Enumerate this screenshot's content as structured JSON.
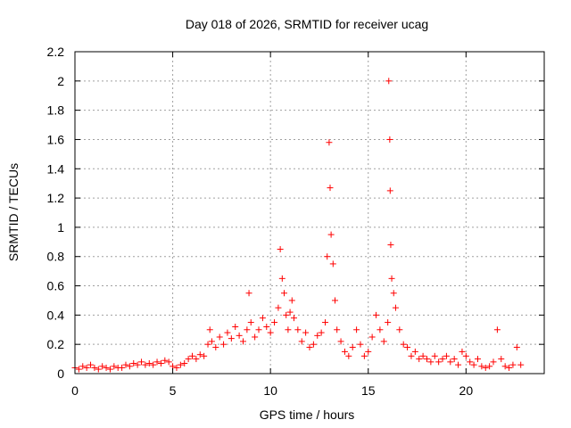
{
  "chart_data": {
    "type": "scatter",
    "title": "Day 018 of 2026, SRMTID for receiver ucag",
    "xlabel": "GPS time / hours",
    "ylabel": "SRMTID / TECUs",
    "xlim": [
      0,
      24
    ],
    "ylim": [
      0,
      2.2
    ],
    "xticks": [
      0,
      5,
      10,
      15,
      20
    ],
    "xtick_labels": [
      "0",
      "5",
      "10",
      "15",
      "20"
    ],
    "yticks": [
      0,
      0.2,
      0.4,
      0.6,
      0.8,
      1,
      1.2,
      1.4,
      1.6,
      1.8,
      2,
      2.2
    ],
    "ytick_labels": [
      "0",
      "0.2",
      "0.4",
      "0.6",
      "0.8",
      "1",
      "1.2",
      "1.4",
      "1.6",
      "1.8",
      "2",
      "2.2"
    ],
    "grid": true,
    "marker": "+",
    "marker_color": "#ff0000",
    "series": [
      {
        "name": "SRMTID",
        "points": [
          [
            0.0,
            0.04
          ],
          [
            0.2,
            0.03
          ],
          [
            0.4,
            0.05
          ],
          [
            0.6,
            0.04
          ],
          [
            0.8,
            0.06
          ],
          [
            1.0,
            0.04
          ],
          [
            1.2,
            0.03
          ],
          [
            1.4,
            0.05
          ],
          [
            1.6,
            0.04
          ],
          [
            1.8,
            0.03
          ],
          [
            2.0,
            0.05
          ],
          [
            2.2,
            0.04
          ],
          [
            2.4,
            0.04
          ],
          [
            2.6,
            0.06
          ],
          [
            2.8,
            0.05
          ],
          [
            3.0,
            0.07
          ],
          [
            3.2,
            0.06
          ],
          [
            3.4,
            0.08
          ],
          [
            3.6,
            0.06
          ],
          [
            3.8,
            0.07
          ],
          [
            4.0,
            0.06
          ],
          [
            4.2,
            0.08
          ],
          [
            4.4,
            0.07
          ],
          [
            4.6,
            0.09
          ],
          [
            4.8,
            0.08
          ],
          [
            5.0,
            0.05
          ],
          [
            5.2,
            0.04
          ],
          [
            5.4,
            0.06
          ],
          [
            5.6,
            0.07
          ],
          [
            5.8,
            0.1
          ],
          [
            6.0,
            0.12
          ],
          [
            6.2,
            0.1
          ],
          [
            6.4,
            0.13
          ],
          [
            6.6,
            0.12
          ],
          [
            6.8,
            0.2
          ],
          [
            6.9,
            0.3
          ],
          [
            7.0,
            0.22
          ],
          [
            7.2,
            0.18
          ],
          [
            7.4,
            0.25
          ],
          [
            7.6,
            0.2
          ],
          [
            7.8,
            0.28
          ],
          [
            8.0,
            0.24
          ],
          [
            8.2,
            0.32
          ],
          [
            8.4,
            0.26
          ],
          [
            8.6,
            0.22
          ],
          [
            8.8,
            0.3
          ],
          [
            8.9,
            0.55
          ],
          [
            9.0,
            0.35
          ],
          [
            9.2,
            0.25
          ],
          [
            9.4,
            0.3
          ],
          [
            9.6,
            0.38
          ],
          [
            9.8,
            0.32
          ],
          [
            10.0,
            0.28
          ],
          [
            10.2,
            0.35
          ],
          [
            10.4,
            0.45
          ],
          [
            10.5,
            0.85
          ],
          [
            10.6,
            0.65
          ],
          [
            10.7,
            0.55
          ],
          [
            10.8,
            0.4
          ],
          [
            10.9,
            0.3
          ],
          [
            11.0,
            0.42
          ],
          [
            11.1,
            0.5
          ],
          [
            11.2,
            0.38
          ],
          [
            11.4,
            0.3
          ],
          [
            11.6,
            0.22
          ],
          [
            11.8,
            0.28
          ],
          [
            12.0,
            0.18
          ],
          [
            12.2,
            0.2
          ],
          [
            12.4,
            0.26
          ],
          [
            12.6,
            0.28
          ],
          [
            12.8,
            0.35
          ],
          [
            12.9,
            0.8
          ],
          [
            13.0,
            1.58
          ],
          [
            13.05,
            1.27
          ],
          [
            13.1,
            0.95
          ],
          [
            13.2,
            0.75
          ],
          [
            13.3,
            0.5
          ],
          [
            13.4,
            0.3
          ],
          [
            13.6,
            0.22
          ],
          [
            13.8,
            0.15
          ],
          [
            14.0,
            0.12
          ],
          [
            14.2,
            0.18
          ],
          [
            14.4,
            0.3
          ],
          [
            14.6,
            0.2
          ],
          [
            14.8,
            0.12
          ],
          [
            15.0,
            0.15
          ],
          [
            15.2,
            0.25
          ],
          [
            15.4,
            0.4
          ],
          [
            15.6,
            0.3
          ],
          [
            15.8,
            0.22
          ],
          [
            16.0,
            0.35
          ],
          [
            16.05,
            2.0
          ],
          [
            16.1,
            1.6
          ],
          [
            16.12,
            1.25
          ],
          [
            16.15,
            0.88
          ],
          [
            16.2,
            0.65
          ],
          [
            16.3,
            0.55
          ],
          [
            16.4,
            0.45
          ],
          [
            16.6,
            0.3
          ],
          [
            16.8,
            0.2
          ],
          [
            17.0,
            0.18
          ],
          [
            17.2,
            0.12
          ],
          [
            17.4,
            0.15
          ],
          [
            17.6,
            0.1
          ],
          [
            17.8,
            0.12
          ],
          [
            18.0,
            0.1
          ],
          [
            18.2,
            0.08
          ],
          [
            18.4,
            0.12
          ],
          [
            18.6,
            0.08
          ],
          [
            18.8,
            0.1
          ],
          [
            19.0,
            0.12
          ],
          [
            19.2,
            0.08
          ],
          [
            19.4,
            0.1
          ],
          [
            19.6,
            0.06
          ],
          [
            19.8,
            0.15
          ],
          [
            20.0,
            0.12
          ],
          [
            20.2,
            0.08
          ],
          [
            20.4,
            0.06
          ],
          [
            20.6,
            0.1
          ],
          [
            20.8,
            0.05
          ],
          [
            21.0,
            0.04
          ],
          [
            21.2,
            0.05
          ],
          [
            21.4,
            0.08
          ],
          [
            21.6,
            0.3
          ],
          [
            21.8,
            0.1
          ],
          [
            22.0,
            0.05
          ],
          [
            22.2,
            0.04
          ],
          [
            22.4,
            0.06
          ],
          [
            22.6,
            0.18
          ],
          [
            22.8,
            0.06
          ]
        ]
      }
    ]
  }
}
